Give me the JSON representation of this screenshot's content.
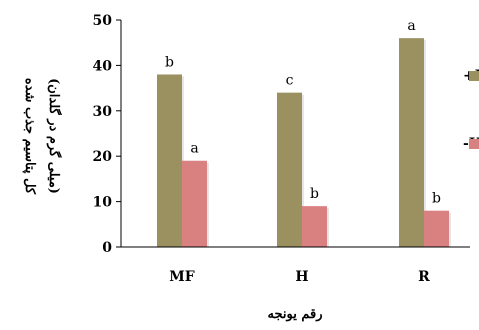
{
  "chart_data": {
    "type": "bar",
    "title": "",
    "xlabel": "رقم یونجه",
    "ylabel_line1": "کل پتاسیم جذب شده",
    "ylabel_line2": "(میلی گرم در گلدان)",
    "ylim": [
      0,
      50
    ],
    "yticks": [
      "0",
      "10",
      "20",
      "30",
      "40",
      "50"
    ],
    "categories": [
      "MF",
      "H",
      "R"
    ],
    "series": [
      {
        "name": "+K",
        "color": "#9b9160",
        "values": [
          38,
          34,
          46
        ],
        "letters": [
          "b",
          "c",
          "a"
        ]
      },
      {
        "name": "-K",
        "color": "#d98080",
        "values": [
          19,
          9,
          8
        ],
        "letters": [
          "a",
          "b",
          "b"
        ]
      }
    ],
    "grid": false,
    "legend_position": "right (partially cropped)"
  }
}
